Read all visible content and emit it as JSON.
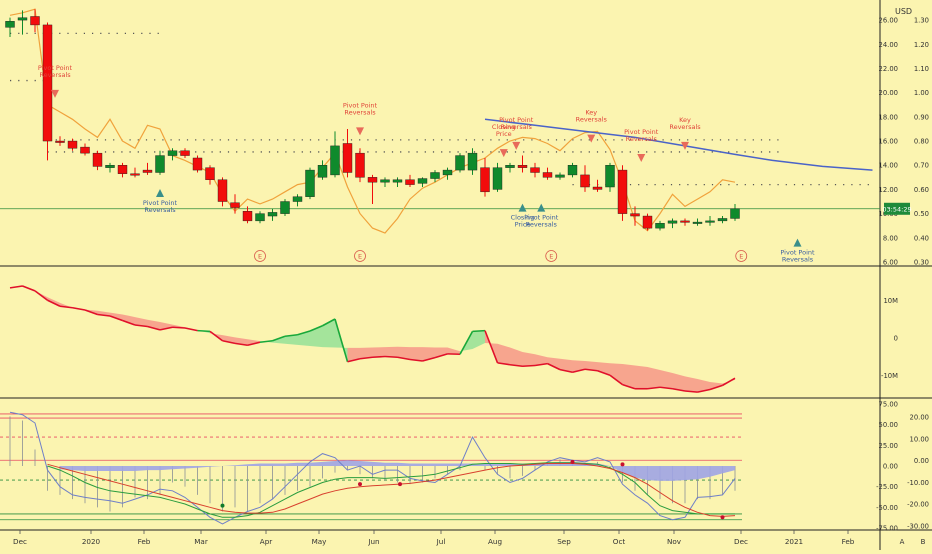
{
  "currency": "USD",
  "colors": {
    "background": "#fbf4b0",
    "up": "#0f8a2c",
    "down": "#f20c0c",
    "orange": "#f0a23c",
    "blue": "#4a63c8",
    "purple_fill": "#9ea4e6",
    "green_fill": "#9fe39a",
    "red_fill": "#f7a08c",
    "red_line": "#e0102a",
    "green_line": "#18a83a",
    "panel_border": "#202020",
    "axis_text": "#333333"
  },
  "time_axis": [
    "Dec",
    "2020",
    "Feb",
    "Mar",
    "Apr",
    "May",
    "Jun",
    "Jul",
    "Aug",
    "Sep",
    "Oct",
    "Nov",
    "Dec",
    "2021",
    "Feb"
  ],
  "axis_footer": [
    "A",
    "B"
  ],
  "chart_data": [
    {
      "type": "candlestick",
      "panel": "price",
      "price_label": "03:54:29",
      "price_axis_left": [
        "26.00",
        "24.00",
        "22.00",
        "20.00",
        "18.00",
        "16.00",
        "14.00",
        "12.00",
        "10.00",
        "8.00",
        "6.00"
      ],
      "price_axis_right": [
        "1.30",
        "1.20",
        "1.10",
        "1.00",
        "0.90",
        "0.80",
        "0.70",
        "0.60",
        "0.50",
        "0.40",
        "0.30"
      ],
      "ylim": [
        6,
        27
      ],
      "candles": [
        {
          "o": 25.4,
          "h": 26.2,
          "l": 24.6,
          "c": 25.9
        },
        {
          "o": 26.0,
          "h": 26.8,
          "l": 24.8,
          "c": 26.2
        },
        {
          "o": 26.3,
          "h": 26.9,
          "l": 25.0,
          "c": 25.6
        },
        {
          "o": 25.6,
          "h": 25.8,
          "l": 14.4,
          "c": 16.0
        },
        {
          "o": 16.0,
          "h": 16.4,
          "l": 15.6,
          "c": 15.9
        },
        {
          "o": 16.0,
          "h": 16.2,
          "l": 15.2,
          "c": 15.4
        },
        {
          "o": 15.5,
          "h": 15.8,
          "l": 14.8,
          "c": 15.0
        },
        {
          "o": 15.0,
          "h": 15.2,
          "l": 13.6,
          "c": 13.9
        },
        {
          "o": 13.8,
          "h": 14.2,
          "l": 13.4,
          "c": 14.0
        },
        {
          "o": 14.0,
          "h": 14.2,
          "l": 13.0,
          "c": 13.3
        },
        {
          "o": 13.3,
          "h": 13.8,
          "l": 13.0,
          "c": 13.2
        },
        {
          "o": 13.6,
          "h": 14.2,
          "l": 13.2,
          "c": 13.4
        },
        {
          "o": 13.4,
          "h": 15.2,
          "l": 13.2,
          "c": 14.8
        },
        {
          "o": 14.8,
          "h": 15.4,
          "l": 14.4,
          "c": 15.2
        },
        {
          "o": 15.2,
          "h": 15.4,
          "l": 14.6,
          "c": 14.8
        },
        {
          "o": 14.6,
          "h": 14.8,
          "l": 13.4,
          "c": 13.6
        },
        {
          "o": 13.8,
          "h": 14.0,
          "l": 12.4,
          "c": 12.8
        },
        {
          "o": 12.8,
          "h": 13.0,
          "l": 10.6,
          "c": 11.0
        },
        {
          "o": 10.9,
          "h": 11.6,
          "l": 10.0,
          "c": 10.5
        },
        {
          "o": 10.2,
          "h": 10.6,
          "l": 9.2,
          "c": 9.4
        },
        {
          "o": 9.4,
          "h": 10.2,
          "l": 9.2,
          "c": 10.0
        },
        {
          "o": 9.8,
          "h": 10.4,
          "l": 9.4,
          "c": 10.1
        },
        {
          "o": 10.0,
          "h": 11.2,
          "l": 9.8,
          "c": 11.0
        },
        {
          "o": 11.0,
          "h": 11.6,
          "l": 10.6,
          "c": 11.4
        },
        {
          "o": 11.4,
          "h": 13.8,
          "l": 11.2,
          "c": 13.6
        },
        {
          "o": 13.0,
          "h": 14.4,
          "l": 12.8,
          "c": 14.0
        },
        {
          "o": 13.2,
          "h": 16.8,
          "l": 13.0,
          "c": 15.6
        },
        {
          "o": 15.8,
          "h": 17.0,
          "l": 13.0,
          "c": 13.4
        },
        {
          "o": 15.0,
          "h": 15.4,
          "l": 12.6,
          "c": 13.0
        },
        {
          "o": 13.0,
          "h": 13.2,
          "l": 10.8,
          "c": 12.6
        },
        {
          "o": 12.6,
          "h": 13.0,
          "l": 12.2,
          "c": 12.8
        },
        {
          "o": 12.6,
          "h": 13.0,
          "l": 12.2,
          "c": 12.8
        },
        {
          "o": 12.8,
          "h": 13.2,
          "l": 12.2,
          "c": 12.4
        },
        {
          "o": 12.5,
          "h": 13.0,
          "l": 12.2,
          "c": 12.9
        },
        {
          "o": 12.9,
          "h": 13.6,
          "l": 12.6,
          "c": 13.4
        },
        {
          "o": 13.2,
          "h": 13.8,
          "l": 12.8,
          "c": 13.6
        },
        {
          "o": 13.6,
          "h": 15.0,
          "l": 13.4,
          "c": 14.8
        },
        {
          "o": 13.6,
          "h": 15.4,
          "l": 13.2,
          "c": 15.0
        },
        {
          "o": 13.8,
          "h": 14.6,
          "l": 11.4,
          "c": 11.8
        },
        {
          "o": 12.0,
          "h": 14.2,
          "l": 11.8,
          "c": 13.8
        },
        {
          "o": 13.8,
          "h": 14.2,
          "l": 13.4,
          "c": 14.0
        },
        {
          "o": 14.0,
          "h": 14.8,
          "l": 13.4,
          "c": 13.8
        },
        {
          "o": 13.8,
          "h": 14.2,
          "l": 13.0,
          "c": 13.4
        },
        {
          "o": 13.4,
          "h": 13.8,
          "l": 12.8,
          "c": 13.0
        },
        {
          "o": 13.0,
          "h": 13.4,
          "l": 12.8,
          "c": 13.2
        },
        {
          "o": 13.2,
          "h": 14.2,
          "l": 13.0,
          "c": 14.0
        },
        {
          "o": 13.2,
          "h": 14.0,
          "l": 11.8,
          "c": 12.2
        },
        {
          "o": 12.2,
          "h": 12.8,
          "l": 11.8,
          "c": 12.0
        },
        {
          "o": 12.2,
          "h": 14.2,
          "l": 11.8,
          "c": 14.0
        },
        {
          "o": 13.6,
          "h": 14.0,
          "l": 9.4,
          "c": 10.0
        },
        {
          "o": 10.0,
          "h": 10.6,
          "l": 9.0,
          "c": 9.8
        },
        {
          "o": 9.8,
          "h": 10.0,
          "l": 8.6,
          "c": 8.8
        },
        {
          "o": 8.8,
          "h": 9.4,
          "l": 8.6,
          "c": 9.2
        },
        {
          "o": 9.2,
          "h": 9.6,
          "l": 8.8,
          "c": 9.4
        },
        {
          "o": 9.4,
          "h": 9.6,
          "l": 9.0,
          "c": 9.3
        },
        {
          "o": 9.3,
          "h": 9.6,
          "l": 9.0,
          "c": 9.3
        },
        {
          "o": 9.3,
          "h": 9.8,
          "l": 9.0,
          "c": 9.4
        },
        {
          "o": 9.4,
          "h": 9.8,
          "l": 9.2,
          "c": 9.6
        },
        {
          "o": 9.6,
          "h": 10.8,
          "l": 9.4,
          "c": 10.4
        }
      ],
      "orange_line": [
        26.4,
        26.6,
        26.9,
        19.0,
        18.4,
        17.8,
        17.0,
        16.3,
        17.8,
        16.0,
        15.4,
        17.3,
        17.0,
        14.8,
        14.4,
        13.9,
        13.4,
        11.6,
        10.2,
        11.2,
        10.8,
        11.2,
        11.8,
        12.4,
        12.6,
        13.8,
        15.0,
        12.2,
        10.0,
        8.8,
        8.4,
        9.6,
        11.2,
        12.1,
        12.6,
        13.2,
        13.8,
        14.2,
        14.6,
        15.4,
        16.0,
        16.3,
        16.2,
        15.8,
        15.2,
        16.2,
        16.7,
        16.8,
        15.3,
        12.6,
        9.4,
        8.6,
        10.0,
        11.6,
        10.6,
        11.2,
        11.8,
        12.8,
        12.6
      ],
      "blue_ma": [
        {
          "x": 38,
          "y": 17.8
        },
        {
          "x": 42,
          "y": 17.3
        },
        {
          "x": 46,
          "y": 16.8
        },
        {
          "x": 50,
          "y": 16.3
        },
        {
          "x": 54,
          "y": 15.6
        },
        {
          "x": 58,
          "y": 14.9
        },
        {
          "x": 61,
          "y": 14.4
        },
        {
          "x": 65,
          "y": 13.9
        },
        {
          "x": 69,
          "y": 13.6
        }
      ],
      "dotted_levels": [
        {
          "y": 24.9,
          "from": 0,
          "to": 12
        },
        {
          "y": 21.0,
          "from": 0,
          "to": 3
        },
        {
          "y": 16.1,
          "from": 3,
          "to": 62
        },
        {
          "y": 15.1,
          "from": 3,
          "to": 62
        },
        {
          "y": 12.4,
          "from": 45,
          "to": 69
        }
      ],
      "markers": [
        {
          "i": 3.6,
          "y": 19.9,
          "dir": "down",
          "text": [
            "Pivot Point",
            "Reversals"
          ]
        },
        {
          "i": 12,
          "y": 11.7,
          "dir": "up",
          "text": [
            "Pivot Point",
            "Reversals"
          ]
        },
        {
          "i": 28,
          "y": 16.8,
          "dir": "down",
          "text": [
            "Pivot Point",
            "Reversals"
          ]
        },
        {
          "i": 39.5,
          "y": 15.0,
          "dir": "down",
          "text": [
            "Closing",
            "Price"
          ]
        },
        {
          "i": 40.5,
          "y": 15.6,
          "dir": "down",
          "text": [
            "Pivot Point",
            "Reversals"
          ]
        },
        {
          "i": 41.0,
          "y": 10.5,
          "dir": "up",
          "text": [
            "Closing",
            "Price"
          ]
        },
        {
          "i": 42.5,
          "y": 10.5,
          "dir": "up",
          "text": [
            "Pivot Point",
            "Reversals"
          ]
        },
        {
          "i": 46.5,
          "y": 16.2,
          "dir": "down",
          "text": [
            "Key",
            "Reversals"
          ]
        },
        {
          "i": 50.5,
          "y": 14.6,
          "dir": "down",
          "text": [
            "Pivot Point",
            "Reversals"
          ]
        },
        {
          "i": 54.0,
          "y": 15.6,
          "dir": "down",
          "text": [
            "Key",
            "Reversals"
          ]
        },
        {
          "i": 63.0,
          "y": 7.6,
          "dir": "up",
          "text": [
            "Pivot Point",
            "Reversals"
          ]
        }
      ],
      "earnings_markers": [
        {
          "i": 20,
          "label": "E"
        },
        {
          "i": 28,
          "label": "E"
        },
        {
          "i": 43.3,
          "label": "E"
        },
        {
          "i": 58.5,
          "label": "E"
        }
      ]
    },
    {
      "type": "area",
      "panel": "flow",
      "axis": [
        "10M",
        "0",
        "-10M"
      ],
      "ylim": [
        -15,
        17
      ],
      "series_a": [
        13.3,
        14.0,
        12.5,
        10.8,
        9.3,
        8.0,
        7.5,
        7.2,
        6.7,
        6.2,
        5.5,
        4.8,
        4.2,
        3.5,
        2.8,
        2.0,
        1.2,
        0.7,
        0.1,
        -0.4,
        -0.9,
        -1.3,
        -1.6,
        -1.9,
        -2.2,
        -2.5,
        -2.6,
        -2.7,
        -2.7,
        -2.6,
        -2.5,
        -2.4,
        -2.5,
        -2.5,
        -2.6,
        -2.6,
        -3.6,
        -3.0,
        -1.4,
        -1.6,
        -2.6,
        -3.8,
        -4.4,
        -5.2,
        -5.6,
        -6.0,
        -6.2,
        -6.5,
        -6.8,
        -7.0,
        -7.4,
        -7.8,
        -8.6,
        -9.4,
        -10.3,
        -11.0,
        -11.8,
        -12.2,
        -11.2
      ],
      "series_b": [
        13.3,
        13.8,
        12.5,
        10.0,
        8.4,
        8.0,
        7.4,
        6.2,
        5.8,
        4.6,
        3.4,
        3.0,
        2.1,
        2.8,
        2.6,
        1.9,
        1.7,
        -0.8,
        -1.5,
        -2.0,
        -1.2,
        -0.8,
        0.4,
        0.8,
        1.8,
        3.2,
        5.0,
        -6.4,
        -5.6,
        -5.2,
        -5.0,
        -5.2,
        -5.8,
        -6.2,
        -5.3,
        -4.3,
        -4.4,
        1.7,
        1.9,
        -6.7,
        -7.2,
        -7.6,
        -7.4,
        -6.9,
        -8.5,
        -9.2,
        -8.4,
        -8.8,
        -10.0,
        -12.5,
        -13.6,
        -13.6,
        -13.2,
        -13.6,
        -14.2,
        -14.5,
        -13.8,
        -12.7,
        -10.8
      ]
    },
    {
      "type": "line",
      "panel": "oscillator",
      "axis_left": [
        "75.00",
        "50.00",
        "25.00",
        "0.00",
        "-25.00",
        "-50.00",
        "-75.00"
      ],
      "axis_right": [
        "20.00",
        "10.00",
        "0.00",
        "-10.00",
        "-20.00",
        "-30.00"
      ],
      "ylim": [
        -75,
        75
      ],
      "levels": [
        {
          "y": 63,
          "style": "solid",
          "color": "#e84a62"
        },
        {
          "y": 58,
          "style": "solid",
          "color": "#e84a62"
        },
        {
          "y": 35,
          "style": "dashed",
          "color": "#e84a62"
        },
        {
          "y": 7,
          "style": "solid",
          "color": "#e84a62"
        },
        {
          "y": -17,
          "style": "dashed",
          "color": "#2a8c3c"
        },
        {
          "y": -58,
          "style": "solid",
          "color": "#2a8c3c"
        },
        {
          "y": -65,
          "style": "solid",
          "color": "#2a8c3c"
        }
      ],
      "histogram": [
        60,
        55,
        20,
        -30,
        -35,
        -40,
        -45,
        -50,
        -55,
        -50,
        -38,
        -40,
        -35,
        -20,
        -25,
        -35,
        -45,
        -55,
        -50,
        -55,
        -45,
        -40,
        -35,
        -30,
        -25,
        -15,
        -8,
        -5,
        -10,
        -15,
        -18,
        -20,
        -22,
        -20,
        -15,
        -10,
        -5,
        0,
        -5,
        -10,
        -15,
        -12,
        -5,
        5,
        8,
        5,
        3,
        5,
        -3,
        -20,
        -30,
        -35,
        -40,
        -45,
        -45,
        -40,
        -40,
        -35,
        -30
      ],
      "purple_band": [
        null,
        null,
        null,
        null,
        -4,
        -5,
        -6,
        -6,
        -6,
        -6,
        -6,
        -5,
        -5,
        -4,
        -3,
        -2,
        -1,
        0,
        1,
        2,
        3,
        3,
        3,
        4,
        4,
        5,
        6,
        7,
        6,
        5,
        4,
        4,
        3,
        3,
        3,
        3,
        3,
        3,
        3,
        3,
        3,
        3,
        3,
        4,
        5,
        5,
        4,
        3,
        0,
        -8,
        -14,
        -17,
        -18,
        -18,
        -17,
        -16,
        -13,
        -9,
        -5
      ],
      "blue_line": [
        65,
        62,
        52,
        -5,
        -25,
        -35,
        -38,
        -40,
        -42,
        -45,
        -40,
        -35,
        -28,
        -30,
        -38,
        -50,
        -62,
        -70,
        -62,
        -55,
        -50,
        -40,
        -25,
        -10,
        5,
        15,
        10,
        -5,
        0,
        -10,
        -5,
        -5,
        -15,
        -18,
        -20,
        -10,
        0,
        35,
        10,
        -10,
        -20,
        -15,
        -5,
        5,
        10,
        7,
        5,
        10,
        5,
        -22,
        -35,
        -45,
        -60,
        -65,
        -62,
        -38,
        -37,
        -35,
        -15
      ],
      "green_line": [
        null,
        null,
        null,
        0,
        -5,
        -12,
        -20,
        -26,
        -30,
        -32,
        -34,
        -36,
        -38,
        -42,
        -46,
        -52,
        -58,
        -62,
        -62,
        -60,
        -56,
        -48,
        -40,
        -32,
        -26,
        -20,
        -16,
        -14,
        -14,
        -14,
        -15,
        -14,
        -13,
        -12,
        -10,
        -6,
        -2,
        2,
        3,
        3,
        3,
        2,
        3,
        4,
        4,
        4,
        3,
        2,
        -2,
        -10,
        -20,
        -35,
        -48,
        -54,
        -56,
        -58,
        -58,
        -58,
        -58
      ],
      "red_line": [
        null,
        null,
        null,
        2,
        -2,
        -6,
        -10,
        -14,
        -18,
        -22,
        -26,
        -30,
        -34,
        -38,
        -42,
        -46,
        -50,
        -54,
        -56,
        -57,
        -57,
        -56,
        -52,
        -46,
        -40,
        -34,
        -30,
        -27,
        -25,
        -24,
        -23,
        -22,
        -21,
        -19,
        -17,
        -14,
        -11,
        -8,
        -5,
        -2,
        0,
        1,
        2,
        3,
        3,
        3,
        2,
        0,
        -3,
        -8,
        -14,
        -22,
        -32,
        -42,
        -50,
        -56,
        -60,
        -61,
        -60
      ],
      "dots": [
        {
          "i": 17,
          "y": -48,
          "color": "#0f7a2a"
        },
        {
          "i": 28,
          "y": -22,
          "color": "#c8102e"
        },
        {
          "i": 31.2,
          "y": -22,
          "color": "#c8102e"
        },
        {
          "i": 45,
          "y": 5,
          "color": "#c8102e"
        },
        {
          "i": 49,
          "y": 2,
          "color": "#c8102e"
        },
        {
          "i": 57,
          "y": -62,
          "color": "#c8102e"
        }
      ]
    }
  ]
}
